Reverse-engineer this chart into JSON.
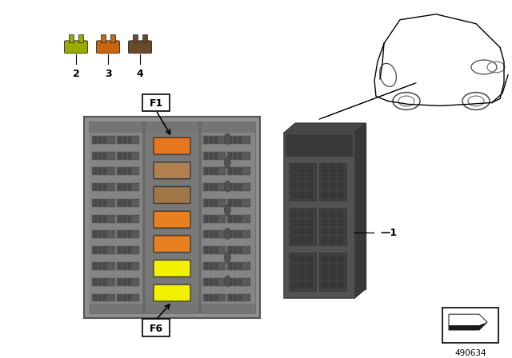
{
  "bg_color": "#ffffff",
  "fuse_colors": [
    "#9aaa00",
    "#c8650a",
    "#6b4a2a"
  ],
  "fuse_labels": [
    "2",
    "3",
    "4"
  ],
  "fuse_slot_colors": [
    "#e87820",
    "#b08050",
    "#a07848",
    "#e88020",
    "#e88020",
    "#f2f200",
    "#f0f000"
  ],
  "part_label": "1",
  "part_number": "490634",
  "box_outer_color": "#909090",
  "box_inner_color": "#808080",
  "box_channel_color": "#787878",
  "pin_color": "#606060",
  "unit_color": "#505050",
  "unit_right_color": "#404040",
  "unit_top_color": "#484848"
}
